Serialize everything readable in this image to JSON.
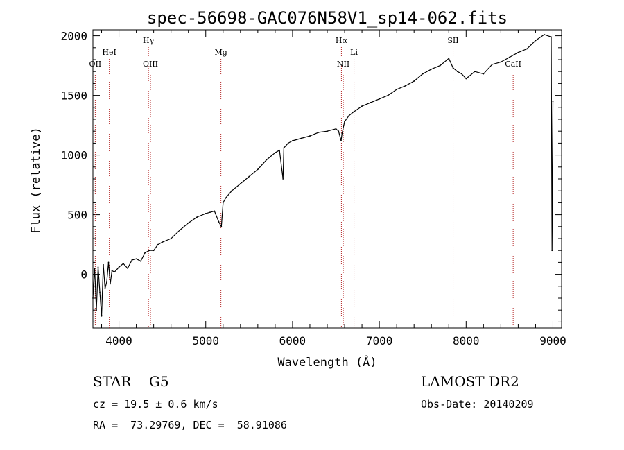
{
  "chart_data": {
    "type": "line",
    "title": "spec-56698-GAC076N58V1_sp14-062.fits",
    "xlabel": "Wavelength (Å)",
    "ylabel": "Flux (relative)",
    "xlim": [
      3700,
      9100
    ],
    "ylim": [
      -450,
      2050
    ],
    "x_ticks": [
      4000,
      5000,
      6000,
      7000,
      8000,
      9000
    ],
    "y_ticks": [
      0,
      500,
      1000,
      1500,
      2000
    ],
    "grid": false,
    "series": [
      {
        "color": "#000000",
        "x": [
          3700,
          3720,
          3740,
          3760,
          3780,
          3800,
          3820,
          3840,
          3860,
          3880,
          3900,
          3920,
          3950,
          4000,
          4050,
          4100,
          4150,
          4200,
          4250,
          4300,
          4350,
          4400,
          4450,
          4500,
          4600,
          4700,
          4800,
          4900,
          5000,
          5050,
          5100,
          5150,
          5180,
          5200,
          5230,
          5300,
          5400,
          5500,
          5600,
          5700,
          5800,
          5850,
          5890,
          5900,
          5950,
          6000,
          6100,
          6200,
          6300,
          6400,
          6500,
          6530,
          6560,
          6570,
          6600,
          6650,
          6700,
          6800,
          6900,
          7000,
          7100,
          7200,
          7300,
          7400,
          7500,
          7600,
          7700,
          7800,
          7850,
          7900,
          7950,
          8000,
          8100,
          8200,
          8300,
          8400,
          8500,
          8550,
          8600,
          8700,
          8800,
          8900,
          8980,
          8990,
          9000
        ],
        "y": [
          -200,
          50,
          -300,
          60,
          -150,
          -350,
          80,
          -120,
          -60,
          100,
          -80,
          30,
          20,
          60,
          90,
          50,
          120,
          130,
          110,
          180,
          200,
          200,
          250,
          270,
          300,
          370,
          430,
          480,
          510,
          520,
          530,
          440,
          400,
          600,
          640,
          700,
          760,
          820,
          880,
          960,
          1020,
          1040,
          800,
          1060,
          1100,
          1120,
          1140,
          1160,
          1190,
          1200,
          1220,
          1200,
          1120,
          1180,
          1280,
          1330,
          1360,
          1410,
          1440,
          1470,
          1500,
          1550,
          1580,
          1620,
          1680,
          1720,
          1750,
          1810,
          1730,
          1700,
          1680,
          1640,
          1700,
          1680,
          1760,
          1780,
          1820,
          1840,
          1860,
          1890,
          1960,
          2010,
          1990,
          200,
          1450
        ]
      }
    ],
    "lines": [
      {
        "wl": 3727,
        "label": "OII",
        "row": 2
      },
      {
        "wl": 3889,
        "label": "HeI",
        "row": 1
      },
      {
        "wl": 4340,
        "label": "Hγ",
        "row": 0
      },
      {
        "wl": 4363,
        "label": "OIII",
        "row": 2
      },
      {
        "wl": 5175,
        "label": "Mg",
        "row": 1
      },
      {
        "wl": 6563,
        "label": "Hα",
        "row": 0
      },
      {
        "wl": 6584,
        "label": "NII",
        "row": 2
      },
      {
        "wl": 6708,
        "label": "Li",
        "row": 1
      },
      {
        "wl": 7850,
        "label": "SII",
        "row": 0
      },
      {
        "wl": 8542,
        "label": "CaII",
        "row": 2
      }
    ]
  },
  "info": {
    "class_line": "STAR    G5",
    "cz_line": "cz = 19.5 ± 0.6 km/s",
    "radec_line": "RA =  73.29769, DEC =  58.91086",
    "survey": "LAMOST DR2",
    "obs_date": "Obs-Date: 20140209"
  }
}
